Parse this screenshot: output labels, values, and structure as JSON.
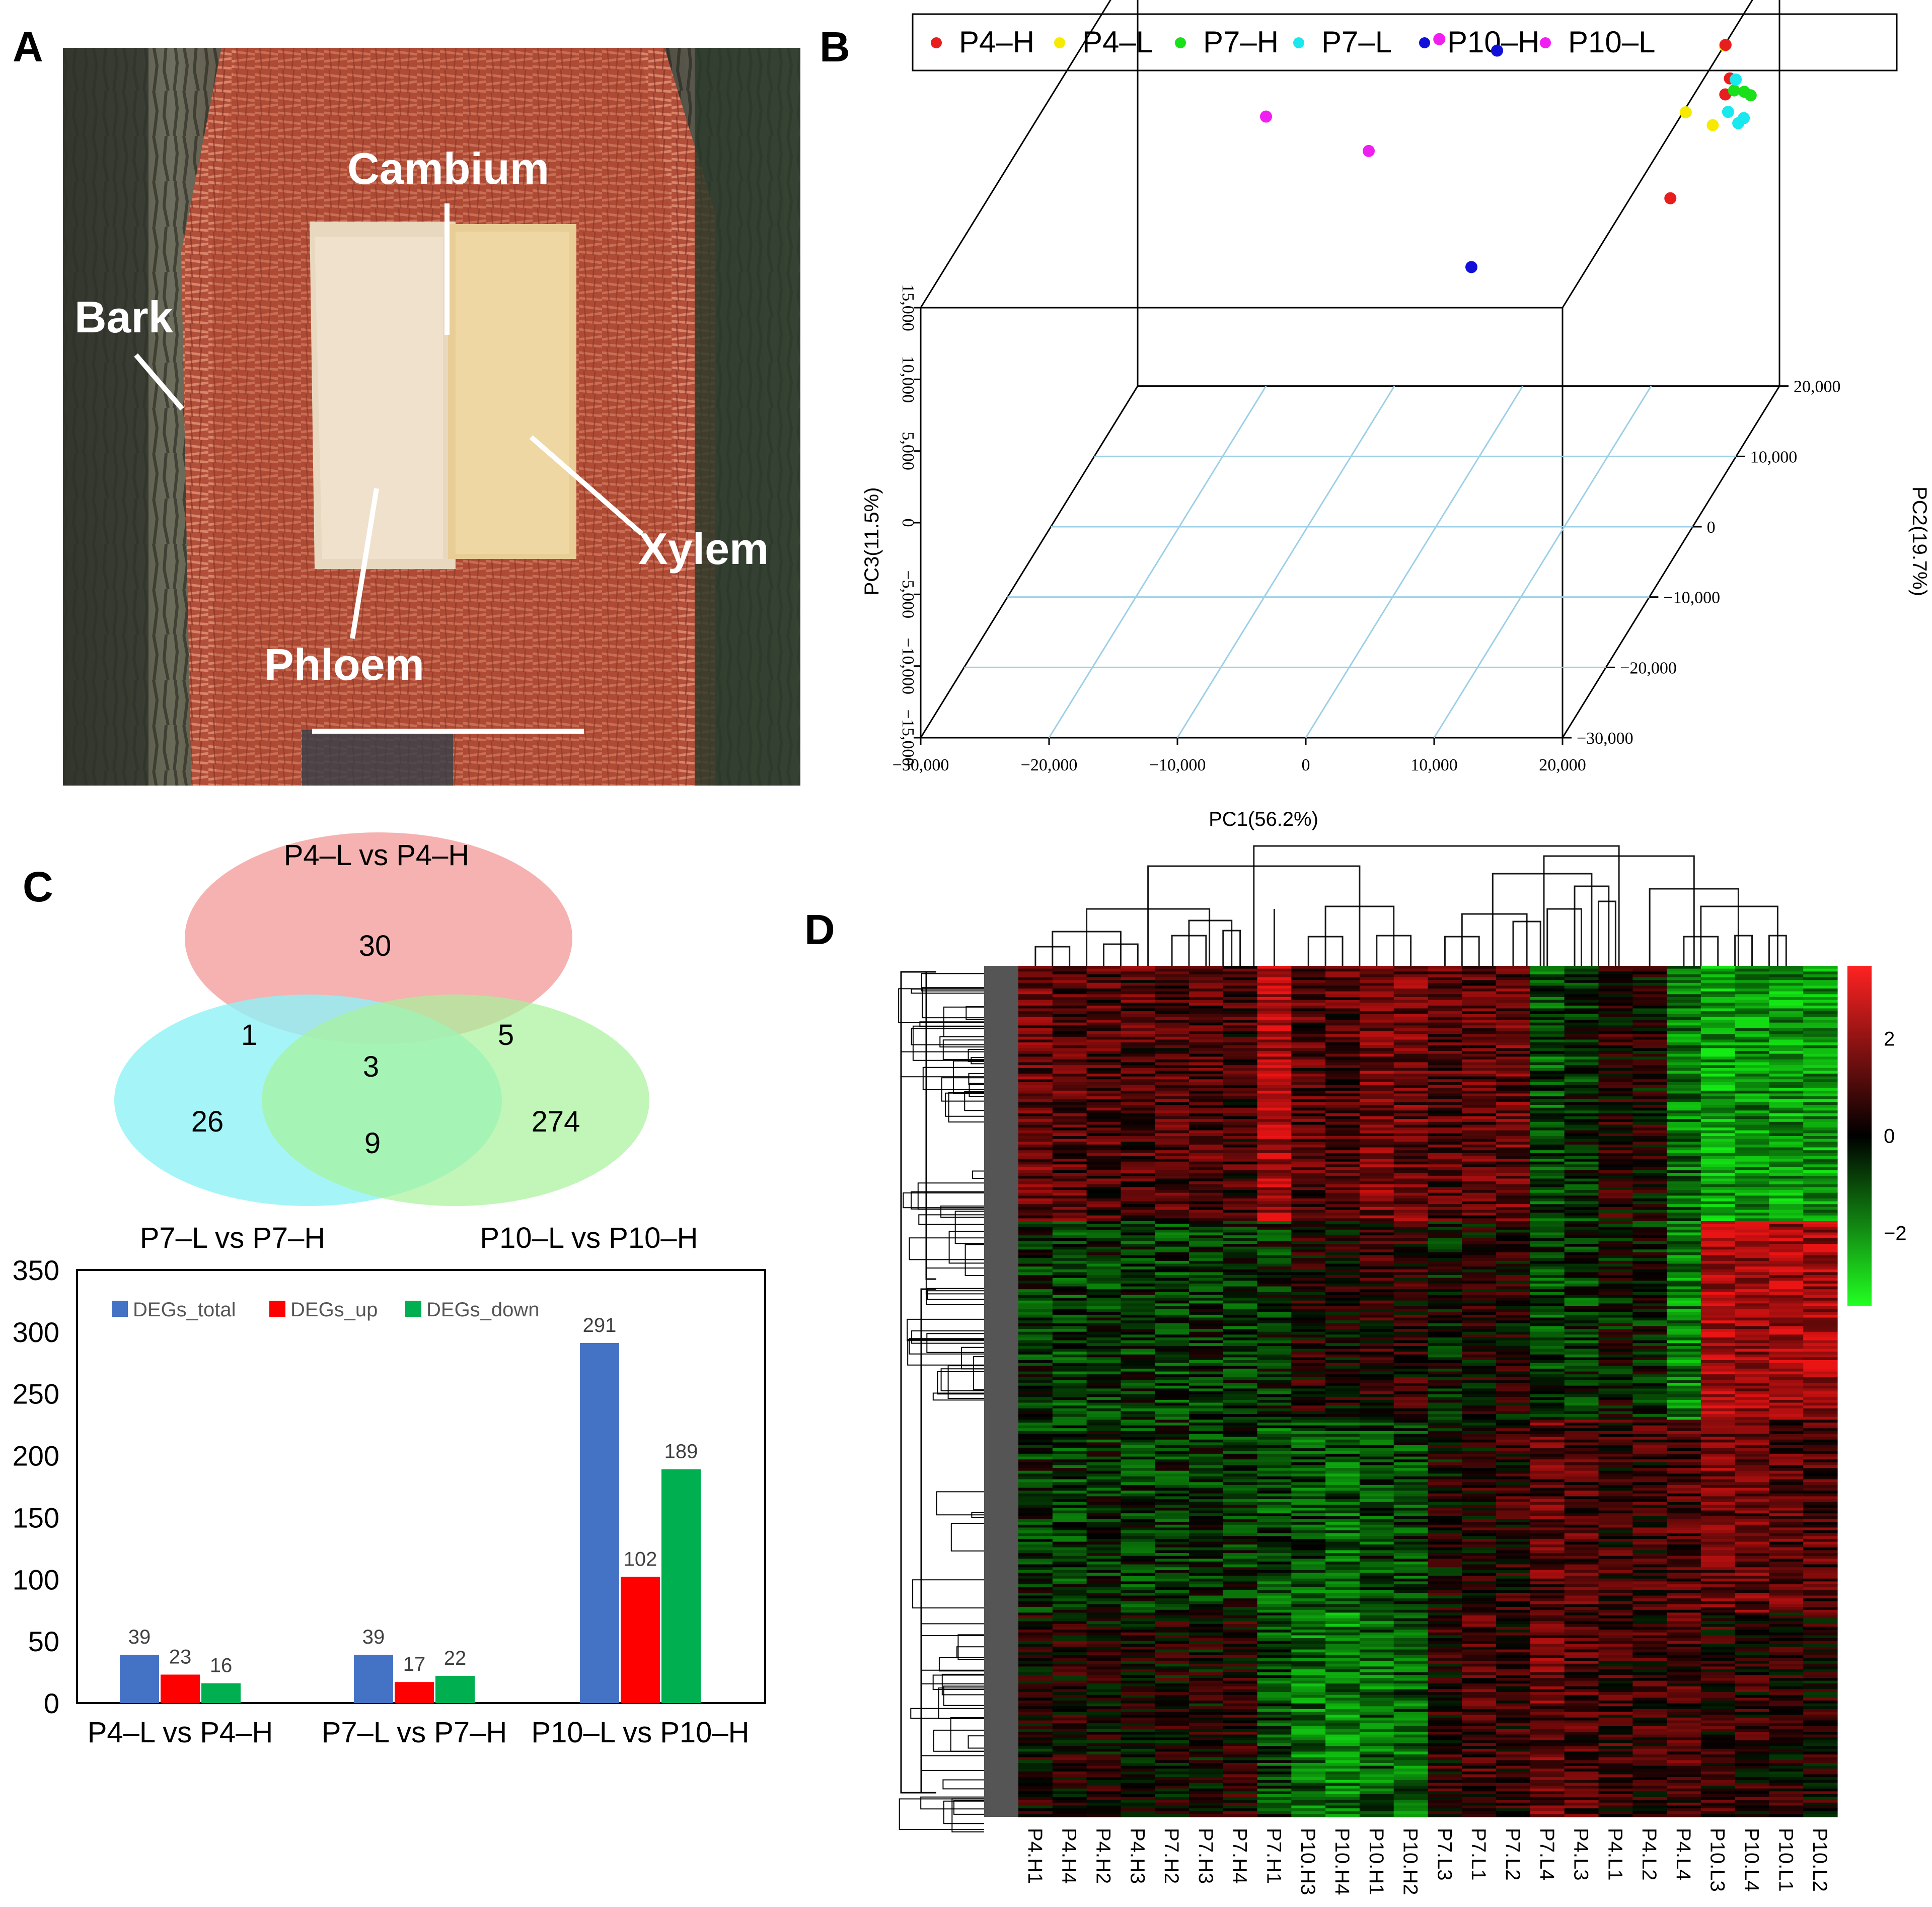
{
  "panel_labels": {
    "a": "A",
    "b": "B",
    "c": "C",
    "d": "D"
  },
  "photo": {
    "labels": {
      "cambium": "Cambium",
      "bark": "Bark",
      "xylem": "Xylem",
      "phloem": "Phloem"
    }
  },
  "colors": {
    "P4-H": "#e81e1e",
    "P4-L": "#f5ea00",
    "P7-H": "#19e019",
    "P7-L": "#19e8ee",
    "P10-H": "#1010d8",
    "P10-L": "#f01ef0",
    "venn_a": "#f4a3a3",
    "venn_b": "#8ef2f6",
    "venn_c": "#a6f29a",
    "bar_total": "#4472c4",
    "bar_up": "#ff0000",
    "bar_down": "#00b050"
  },
  "chart_data": [
    {
      "type": "scatter",
      "id": "pca",
      "title": "",
      "legend": [
        {
          "name": "P4–H",
          "key": "P4-H"
        },
        {
          "name": "P4–L",
          "key": "P4-L"
        },
        {
          "name": "P7–H",
          "key": "P7-H"
        },
        {
          "name": "P7–L",
          "key": "P7-L"
        },
        {
          "name": "P10–H",
          "key": "P10-H"
        },
        {
          "name": "P10–L",
          "key": "P10-L"
        }
      ],
      "legend_position": "top",
      "xlabel": "PC1(56.2%)",
      "ylabel": "PC2(19.7%)",
      "zlabel": "PC3(11.5%)",
      "xlim": [
        -30000,
        20000
      ],
      "ylim": [
        -30000,
        20000
      ],
      "zlim": [
        -15000,
        15000
      ],
      "x_ticks": [
        "−30,000",
        "−20,000",
        "−10,000",
        "0",
        "10,000",
        "20,000"
      ],
      "x_tick_values": [
        -30000,
        -20000,
        -10000,
        0,
        10000,
        20000
      ],
      "y_ticks": [
        "−30,000",
        "−20,000",
        "−10,000",
        "0",
        "10,000",
        "20,000"
      ],
      "y_tick_values": [
        -30000,
        -20000,
        -10000,
        0,
        10000,
        20000
      ],
      "z_ticks": [
        "−15,000",
        "−10,000",
        "−5,000",
        "0",
        "5,000",
        "10,000",
        "15,000"
      ],
      "z_tick_values": [
        -15000,
        -10000,
        -5000,
        0,
        5000,
        10000,
        15000
      ],
      "points": [
        {
          "group": "P10-H",
          "pc1": 0,
          "pc2": 20000,
          "pc3": 20500
        },
        {
          "group": "P10-H",
          "pc1": 0,
          "pc2": 20000,
          "pc3": 14500
        },
        {
          "group": "P10-H",
          "pc1": -2000,
          "pc2": 20000,
          "pc3": 8400
        },
        {
          "group": "P10-H",
          "pc1": -4000,
          "pc2": 20000,
          "pc3": -6700
        },
        {
          "group": "P10-L",
          "pc1": -6300,
          "pc2": 20000,
          "pc3": 19300
        },
        {
          "group": "P10-L",
          "pc1": -6500,
          "pc2": 20000,
          "pc3": 9200
        },
        {
          "group": "P10-L",
          "pc1": -20000,
          "pc2": 20000,
          "pc3": 3800
        },
        {
          "group": "P10-L",
          "pc1": -12000,
          "pc2": 20000,
          "pc3": 1400
        },
        {
          "group": "P4-L",
          "pc1": 10000,
          "pc2": 20000,
          "pc3": 15000
        },
        {
          "group": "P4-L",
          "pc1": 17500,
          "pc2": 14800,
          "pc3": 11300
        },
        {
          "group": "P4-L",
          "pc1": 12700,
          "pc2": 20000,
          "pc3": 4100
        },
        {
          "group": "P4-L",
          "pc1": 14800,
          "pc2": 20000,
          "pc3": 3200
        },
        {
          "group": "P4-H",
          "pc1": 15800,
          "pc2": 20000,
          "pc3": 8800
        },
        {
          "group": "P4-H",
          "pc1": 18300,
          "pc2": 13600,
          "pc3": 9600
        },
        {
          "group": "P4-H",
          "pc1": 17400,
          "pc2": 15200,
          "pc3": 7700
        },
        {
          "group": "P4-H",
          "pc1": 11500,
          "pc2": 20000,
          "pc3": -1900
        },
        {
          "group": "P7-H",
          "pc1": 19000,
          "pc2": 12500,
          "pc3": 9300
        },
        {
          "group": "P7-H",
          "pc1": 20200,
          "pc2": 11300,
          "pc3": 9800
        },
        {
          "group": "P7-H",
          "pc1": 20800,
          "pc2": 11000,
          "pc3": 9700
        },
        {
          "group": "P7-L",
          "pc1": 19700,
          "pc2": 10800,
          "pc3": 10900
        },
        {
          "group": "P7-L",
          "pc1": 18800,
          "pc2": 11700,
          "pc3": 8200
        },
        {
          "group": "P7-L",
          "pc1": 20000,
          "pc2": 10500,
          "pc3": 8000
        },
        {
          "group": "P7-L",
          "pc1": 20600,
          "pc2": 10000,
          "pc3": 8600
        }
      ]
    },
    {
      "type": "venn",
      "id": "venn",
      "sets": [
        "P4–L vs P4–H",
        "P7–L vs P7–H",
        "P10–L vs P10–H"
      ],
      "regions": {
        "a_only": "30",
        "b_only": "26",
        "c_only": "274",
        "ab": "1",
        "ac": "5",
        "bc": "9",
        "abc": "3"
      }
    },
    {
      "type": "bar",
      "id": "degs",
      "categories": [
        "P4–L vs P4–H",
        "P7–L vs P7–H",
        "P10–L vs P10–H"
      ],
      "series": [
        {
          "name": "DEGs_total",
          "key": "bar_total",
          "values": [
            39,
            39,
            291
          ]
        },
        {
          "name": "DEGs_up",
          "key": "bar_up",
          "values": [
            23,
            17,
            102
          ]
        },
        {
          "name": "DEGs_down",
          "key": "bar_down",
          "values": [
            16,
            22,
            189
          ]
        }
      ],
      "ylim": [
        0,
        350
      ],
      "y_ticks": [
        0,
        50,
        100,
        150,
        200,
        250,
        300,
        350
      ],
      "legend_position": "top-left",
      "title": "",
      "xlabel": "",
      "ylabel": ""
    },
    {
      "type": "heatmap",
      "id": "heatmap",
      "columns": [
        "P4.H1",
        "P4.H4",
        "P4.H2",
        "P4.H3",
        "P7.H2",
        "P7.H3",
        "P7.H4",
        "P7.H1",
        "P10.H3",
        "P10.H4",
        "P10.H1",
        "P10.H2",
        "P7.L3",
        "P7.L1",
        "P7.L2",
        "P7.L4",
        "P4.L3",
        "P4.L1",
        "P4.L2",
        "P4.L4",
        "P10.L3",
        "P10.L4",
        "P10.L1",
        "P10.L2"
      ],
      "block_boundaries": [
        90,
        160,
        228
      ],
      "blocks": [
        [
          0.8,
          0.7,
          0.6,
          0.6,
          0.6,
          0.6,
          0.5,
          1.4,
          0.6,
          0.6,
          0.9,
          0.9,
          0.6,
          0.7,
          0.8,
          -0.6,
          -0.3,
          0.2,
          0.1,
          -0.9,
          -1.3,
          -1.1,
          -1.2,
          -1.2
        ],
        [
          -0.4,
          -0.5,
          -0.4,
          -0.4,
          -0.5,
          -0.4,
          -0.4,
          -0.3,
          0.2,
          0.1,
          0.3,
          0.3,
          -0.1,
          0.1,
          0.1,
          -0.5,
          -0.4,
          -0.1,
          -0.2,
          -1.0,
          1.4,
          1.2,
          1.3,
          1.3
        ],
        [
          -0.3,
          -0.4,
          -0.3,
          -0.4,
          -0.4,
          -0.4,
          -0.3,
          -0.6,
          -0.6,
          -0.7,
          -0.5,
          -0.5,
          0.1,
          0.2,
          0.3,
          0.7,
          0.6,
          0.4,
          0.4,
          0.6,
          0.9,
          0.8,
          0.7,
          0.6
        ],
        [
          0.1,
          0.2,
          0.1,
          0.1,
          0.1,
          0.1,
          0.2,
          -0.5,
          -0.9,
          -1.0,
          -0.8,
          -0.8,
          0.3,
          0.5,
          0.4,
          0.8,
          0.6,
          0.4,
          0.4,
          0.5,
          0.3,
          0.3,
          0.2,
          0.2
        ]
      ],
      "n_rows": 300,
      "colorbar": {
        "ticks": [
          "2",
          "0",
          "−2"
        ],
        "tick_values": [
          2,
          0,
          -2
        ],
        "range": [
          -3.5,
          3.5
        ]
      },
      "color_low": "#00ff00",
      "color_mid": "#000000",
      "color_high": "#ff0000"
    }
  ]
}
